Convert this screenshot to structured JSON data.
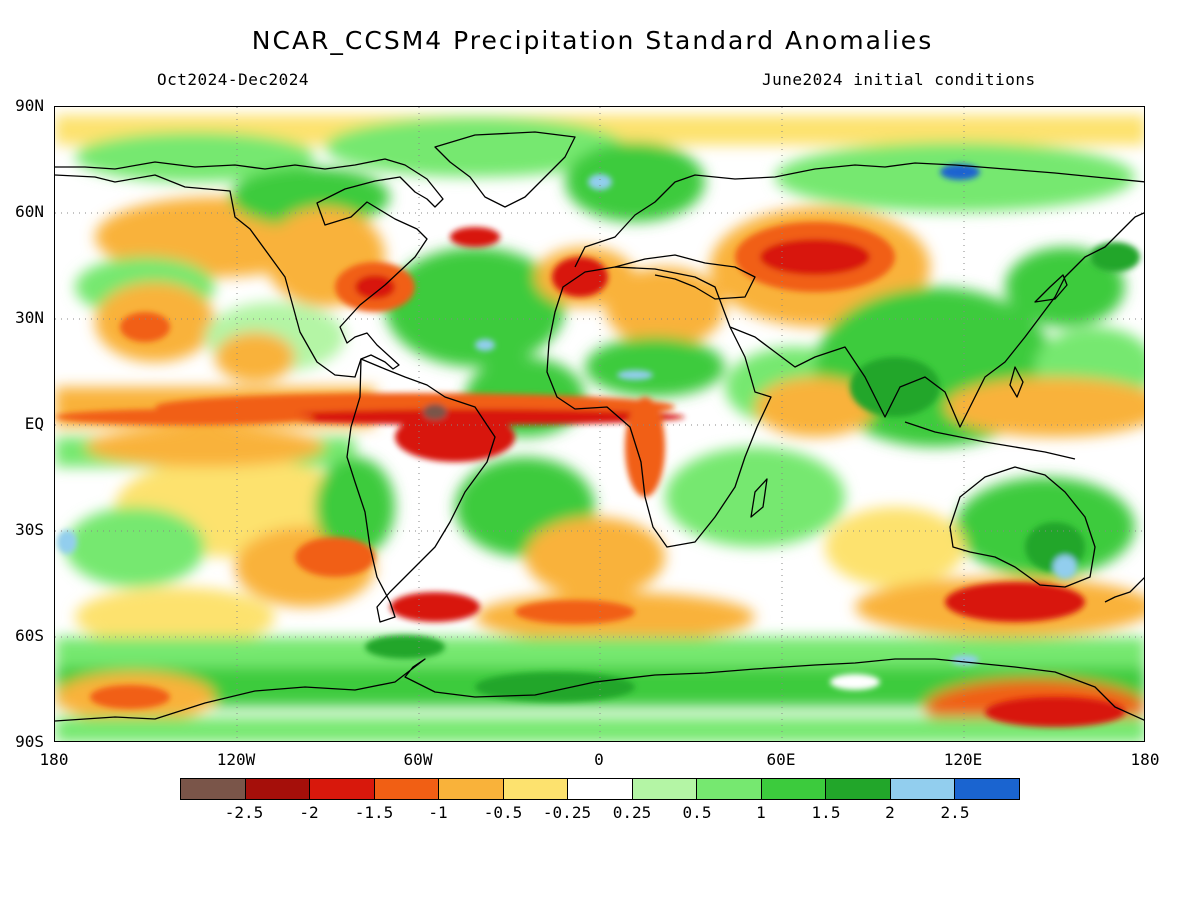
{
  "title": "NCAR_CCSM4 Precipitation Standard Anomalies",
  "valid_period": "Oct2024-Dec2024",
  "initial_conditions": "June2024 initial conditions",
  "map": {
    "projection": "cylindrical-equidistant",
    "lat_labels": [
      "90N",
      "60N",
      "30N",
      "EQ",
      "30S",
      "60S",
      "90S"
    ],
    "lon_labels": [
      "180",
      "120W",
      "60W",
      "0",
      "60E",
      "120E",
      "180"
    ]
  },
  "colorbar": {
    "colors": [
      "#7a5549",
      "#a50f0a",
      "#d8180c",
      "#f15f14",
      "#f9b23a",
      "#fde26e",
      "#ffffff",
      "#b4f5a5",
      "#76e870",
      "#3ccb3d",
      "#22a62a",
      "#92ceee",
      "#1a64d0"
    ],
    "labels": [
      "-2.5",
      "-2",
      "-1.5",
      "-1",
      "-0.5",
      "-0.25",
      "0.25",
      "0.5",
      "1",
      "1.5",
      "2",
      "2.5"
    ]
  },
  "colors": {
    "frame": "#000000",
    "grid": "#888888",
    "coastline": "#000000"
  }
}
